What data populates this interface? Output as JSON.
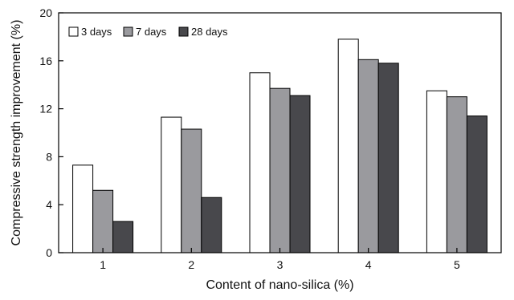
{
  "chart_data": {
    "type": "bar",
    "title": "",
    "xlabel": "Content of nano-silica (%)",
    "ylabel": "Compressive strength improvement (%)",
    "categories": [
      "1",
      "2",
      "3",
      "4",
      "5"
    ],
    "ylim": [
      0,
      20
    ],
    "yticks": [
      0,
      4,
      8,
      12,
      16,
      20
    ],
    "grid": false,
    "legend_position": "top-left",
    "series": [
      {
        "name": "3 days",
        "color": "#ffffff",
        "values": [
          7.3,
          11.3,
          15.0,
          17.8,
          13.5
        ]
      },
      {
        "name": "7 days",
        "color": "#9a9a9e",
        "values": [
          5.2,
          10.3,
          13.7,
          16.1,
          13.0
        ]
      },
      {
        "name": "28 days",
        "color": "#48484c",
        "values": [
          2.6,
          4.6,
          13.1,
          15.8,
          11.4
        ]
      }
    ]
  }
}
